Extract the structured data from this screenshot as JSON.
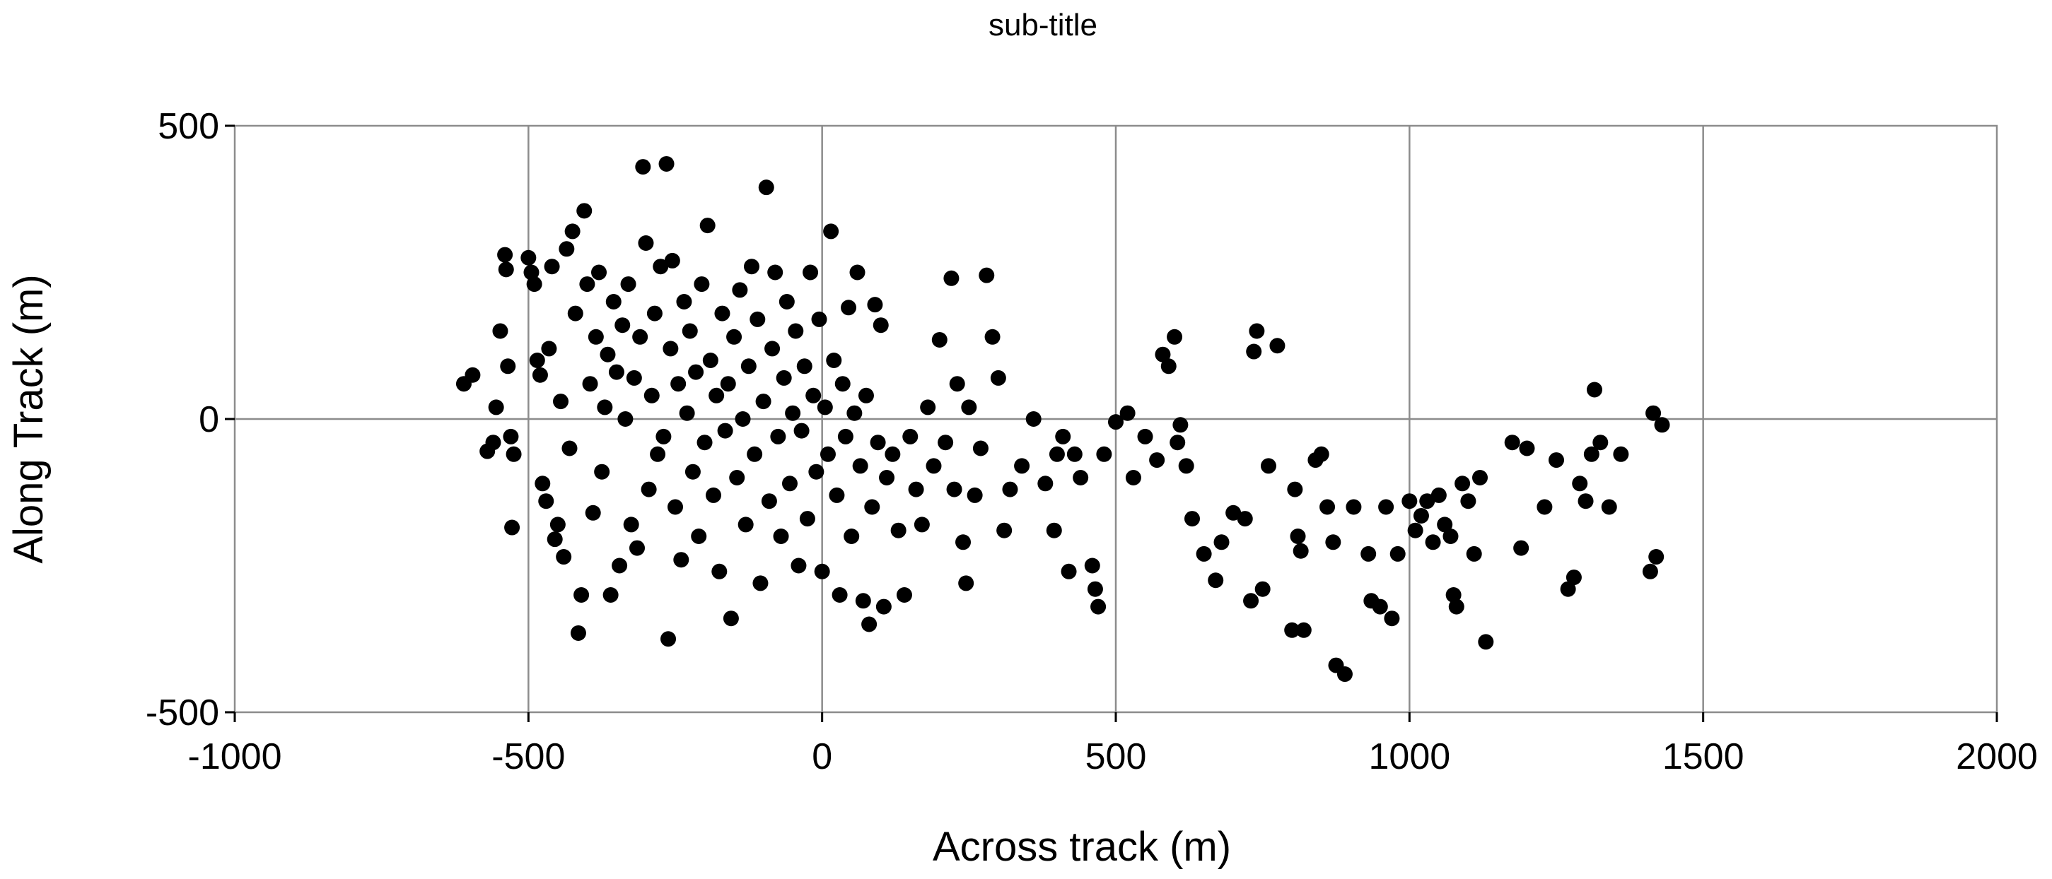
{
  "chart_data": {
    "type": "scatter",
    "title": "",
    "subtitle": "sub-title",
    "xlabel": "Across track (m)",
    "ylabel": "Along Track (m)",
    "xlim": [
      -1000,
      2000
    ],
    "ylim": [
      -500,
      500
    ],
    "xticks": [
      -1000,
      -500,
      0,
      500,
      1000,
      1500,
      2000
    ],
    "yticks": [
      -500,
      0,
      500
    ],
    "xtick_labels": [
      "-1000",
      "-500",
      "0",
      "500",
      "1000",
      "1500",
      "2000"
    ],
    "ytick_labels": [
      "-500",
      "0",
      "500"
    ],
    "grid": true,
    "legend": "none",
    "marker_color": "#000000",
    "points": [
      [
        -610,
        60
      ],
      [
        -595,
        75
      ],
      [
        -570,
        -55
      ],
      [
        -560,
        -40
      ],
      [
        -555,
        20
      ],
      [
        -548,
        150
      ],
      [
        -540,
        280
      ],
      [
        -538,
        255
      ],
      [
        -535,
        90
      ],
      [
        -530,
        -30
      ],
      [
        -528,
        -185
      ],
      [
        -525,
        -60
      ],
      [
        -500,
        275
      ],
      [
        -495,
        250
      ],
      [
        -490,
        230
      ],
      [
        -485,
        100
      ],
      [
        -480,
        75
      ],
      [
        -476,
        -110
      ],
      [
        -470,
        -140
      ],
      [
        -465,
        120
      ],
      [
        -460,
        260
      ],
      [
        -455,
        -205
      ],
      [
        -450,
        -180
      ],
      [
        -445,
        30
      ],
      [
        -440,
        -235
      ],
      [
        -435,
        290
      ],
      [
        -430,
        -50
      ],
      [
        -425,
        320
      ],
      [
        -420,
        180
      ],
      [
        -415,
        -365
      ],
      [
        -410,
        -300
      ],
      [
        -405,
        355
      ],
      [
        -400,
        230
      ],
      [
        -395,
        60
      ],
      [
        -390,
        -160
      ],
      [
        -385,
        140
      ],
      [
        -380,
        250
      ],
      [
        -375,
        -90
      ],
      [
        -370,
        20
      ],
      [
        -365,
        110
      ],
      [
        -360,
        -300
      ],
      [
        -355,
        200
      ],
      [
        -350,
        80
      ],
      [
        -345,
        -250
      ],
      [
        -340,
        160
      ],
      [
        -335,
        0
      ],
      [
        -330,
        230
      ],
      [
        -325,
        -180
      ],
      [
        -320,
        70
      ],
      [
        -315,
        -220
      ],
      [
        -310,
        140
      ],
      [
        -305,
        430
      ],
      [
        -300,
        300
      ],
      [
        -295,
        -120
      ],
      [
        -290,
        40
      ],
      [
        -285,
        180
      ],
      [
        -280,
        -60
      ],
      [
        -275,
        260
      ],
      [
        -270,
        -30
      ],
      [
        -265,
        435
      ],
      [
        -262,
        -375
      ],
      [
        -258,
        120
      ],
      [
        -255,
        270
      ],
      [
        -250,
        -150
      ],
      [
        -245,
        60
      ],
      [
        -240,
        -240
      ],
      [
        -235,
        200
      ],
      [
        -230,
        10
      ],
      [
        -225,
        150
      ],
      [
        -220,
        -90
      ],
      [
        -215,
        80
      ],
      [
        -210,
        -200
      ],
      [
        -205,
        230
      ],
      [
        -200,
        -40
      ],
      [
        -195,
        330
      ],
      [
        -190,
        100
      ],
      [
        -185,
        -130
      ],
      [
        -180,
        40
      ],
      [
        -175,
        -260
      ],
      [
        -170,
        180
      ],
      [
        -165,
        -20
      ],
      [
        -160,
        60
      ],
      [
        -155,
        -340
      ],
      [
        -150,
        140
      ],
      [
        -145,
        -100
      ],
      [
        -140,
        220
      ],
      [
        -135,
        0
      ],
      [
        -130,
        -180
      ],
      [
        -125,
        90
      ],
      [
        -120,
        260
      ],
      [
        -115,
        -60
      ],
      [
        -110,
        170
      ],
      [
        -105,
        -280
      ],
      [
        -100,
        30
      ],
      [
        -95,
        395
      ],
      [
        -90,
        -140
      ],
      [
        -85,
        120
      ],
      [
        -80,
        250
      ],
      [
        -75,
        -30
      ],
      [
        -70,
        -200
      ],
      [
        -65,
        70
      ],
      [
        -60,
        200
      ],
      [
        -55,
        -110
      ],
      [
        -50,
        10
      ],
      [
        -45,
        150
      ],
      [
        -40,
        -250
      ],
      [
        -35,
        -20
      ],
      [
        -30,
        90
      ],
      [
        -25,
        -170
      ],
      [
        -20,
        250
      ],
      [
        -15,
        40
      ],
      [
        -10,
        -90
      ],
      [
        -5,
        170
      ],
      [
        0,
        -260
      ],
      [
        5,
        20
      ],
      [
        10,
        -60
      ],
      [
        15,
        320
      ],
      [
        20,
        100
      ],
      [
        25,
        -130
      ],
      [
        30,
        -300
      ],
      [
        35,
        60
      ],
      [
        40,
        -30
      ],
      [
        45,
        190
      ],
      [
        50,
        -200
      ],
      [
        55,
        10
      ],
      [
        60,
        250
      ],
      [
        65,
        -80
      ],
      [
        70,
        -310
      ],
      [
        75,
        40
      ],
      [
        80,
        -350
      ],
      [
        85,
        -150
      ],
      [
        90,
        195
      ],
      [
        95,
        -40
      ],
      [
        100,
        160
      ],
      [
        105,
        -320
      ],
      [
        110,
        -100
      ],
      [
        120,
        -60
      ],
      [
        130,
        -190
      ],
      [
        140,
        -300
      ],
      [
        150,
        -30
      ],
      [
        160,
        -120
      ],
      [
        170,
        -180
      ],
      [
        180,
        20
      ],
      [
        190,
        -80
      ],
      [
        200,
        135
      ],
      [
        210,
        -40
      ],
      [
        220,
        240
      ],
      [
        225,
        -120
      ],
      [
        230,
        60
      ],
      [
        240,
        -210
      ],
      [
        245,
        -280
      ],
      [
        250,
        20
      ],
      [
        260,
        -130
      ],
      [
        270,
        -50
      ],
      [
        280,
        245
      ],
      [
        290,
        140
      ],
      [
        300,
        70
      ],
      [
        310,
        -190
      ],
      [
        320,
        -120
      ],
      [
        340,
        -80
      ],
      [
        360,
        0
      ],
      [
        380,
        -110
      ],
      [
        395,
        -190
      ],
      [
        400,
        -60
      ],
      [
        410,
        -30
      ],
      [
        420,
        -260
      ],
      [
        430,
        -60
      ],
      [
        440,
        -100
      ],
      [
        460,
        -250
      ],
      [
        465,
        -290
      ],
      [
        470,
        -320
      ],
      [
        480,
        -60
      ],
      [
        500,
        -5
      ],
      [
        520,
        10
      ],
      [
        530,
        -100
      ],
      [
        550,
        -30
      ],
      [
        570,
        -70
      ],
      [
        580,
        110
      ],
      [
        590,
        90
      ],
      [
        600,
        140
      ],
      [
        605,
        -40
      ],
      [
        610,
        -10
      ],
      [
        620,
        -80
      ],
      [
        630,
        -170
      ],
      [
        650,
        -230
      ],
      [
        670,
        -275
      ],
      [
        680,
        -210
      ],
      [
        700,
        -160
      ],
      [
        720,
        -170
      ],
      [
        730,
        -310
      ],
      [
        735,
        115
      ],
      [
        740,
        150
      ],
      [
        750,
        -290
      ],
      [
        760,
        -80
      ],
      [
        775,
        125
      ],
      [
        800,
        -360
      ],
      [
        805,
        -120
      ],
      [
        810,
        -200
      ],
      [
        815,
        -225
      ],
      [
        820,
        -360
      ],
      [
        840,
        -70
      ],
      [
        850,
        -60
      ],
      [
        860,
        -150
      ],
      [
        870,
        -210
      ],
      [
        875,
        -420
      ],
      [
        890,
        -435
      ],
      [
        905,
        -150
      ],
      [
        930,
        -230
      ],
      [
        935,
        -310
      ],
      [
        950,
        -320
      ],
      [
        960,
        -150
      ],
      [
        970,
        -340
      ],
      [
        980,
        -230
      ],
      [
        1000,
        -140
      ],
      [
        1010,
        -190
      ],
      [
        1020,
        -165
      ],
      [
        1030,
        -140
      ],
      [
        1040,
        -210
      ],
      [
        1050,
        -130
      ],
      [
        1060,
        -180
      ],
      [
        1070,
        -200
      ],
      [
        1075,
        -300
      ],
      [
        1080,
        -320
      ],
      [
        1090,
        -110
      ],
      [
        1100,
        -140
      ],
      [
        1110,
        -230
      ],
      [
        1120,
        -100
      ],
      [
        1130,
        -380
      ],
      [
        1175,
        -40
      ],
      [
        1190,
        -220
      ],
      [
        1200,
        -50
      ],
      [
        1230,
        -150
      ],
      [
        1250,
        -70
      ],
      [
        1270,
        -290
      ],
      [
        1280,
        -270
      ],
      [
        1290,
        -110
      ],
      [
        1300,
        -140
      ],
      [
        1310,
        -60
      ],
      [
        1315,
        50
      ],
      [
        1325,
        -40
      ],
      [
        1340,
        -150
      ],
      [
        1360,
        -60
      ],
      [
        1410,
        -260
      ],
      [
        1415,
        10
      ],
      [
        1420,
        -235
      ],
      [
        1430,
        -10
      ]
    ]
  }
}
